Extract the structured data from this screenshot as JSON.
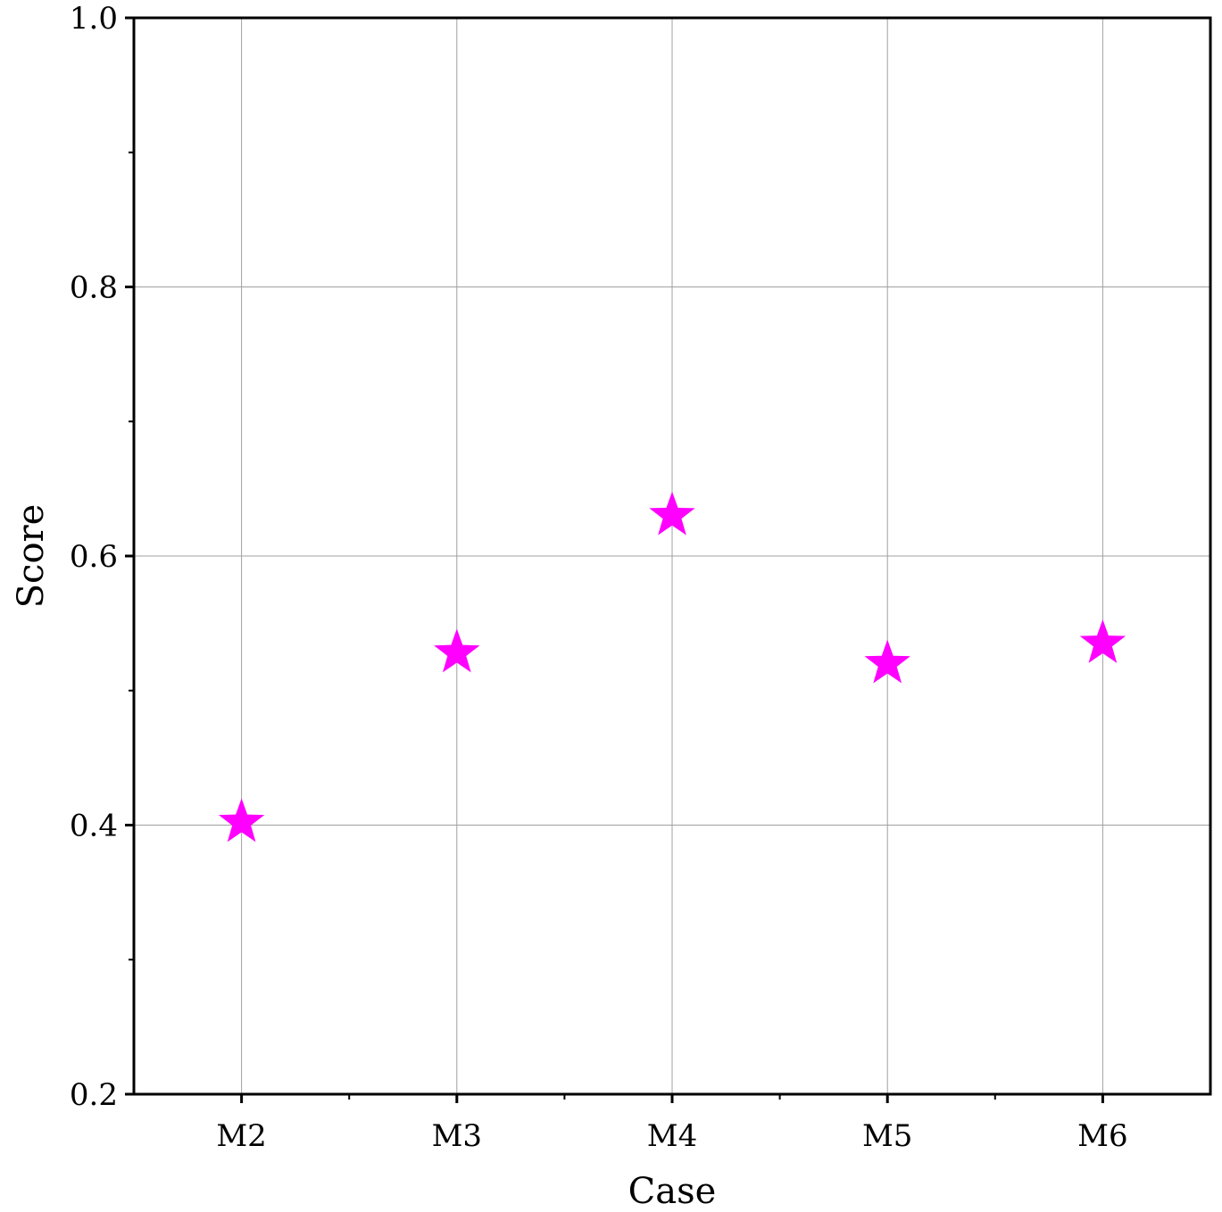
{
  "chart_data": {
    "type": "scatter",
    "categories": [
      "M2",
      "M3",
      "M4",
      "M5",
      "M6"
    ],
    "series": [
      {
        "values": [
          0.402,
          0.528,
          0.63,
          0.52,
          0.535
        ]
      }
    ],
    "xlabel": "Case",
    "ylabel": "Score",
    "ylim": [
      0.2,
      1.0
    ],
    "yticks": [
      "0.2",
      "0.4",
      "0.6",
      "0.8",
      "1.0"
    ],
    "grid": true,
    "marker": "star",
    "marker_color": "#ff00ff"
  }
}
